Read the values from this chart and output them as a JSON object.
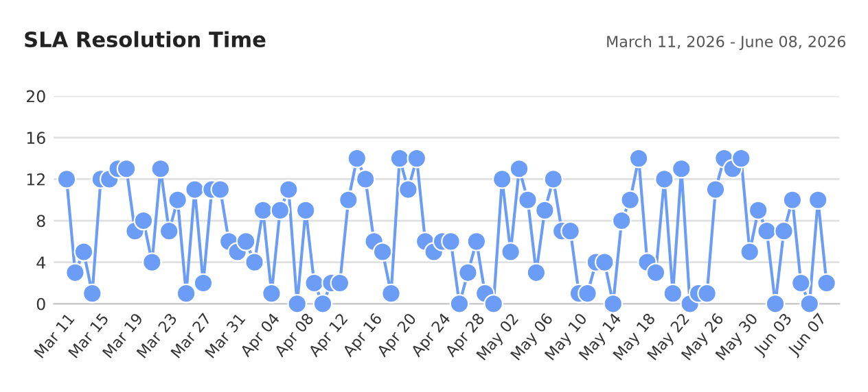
{
  "chart_data": {
    "type": "line",
    "title": "SLA Resolution Time",
    "subtitle": "March 11, 2026 - June 08, 2026",
    "x": [
      "2026-03-11",
      "2026-03-12",
      "2026-03-13",
      "2026-03-14",
      "2026-03-15",
      "2026-03-16",
      "2026-03-17",
      "2026-03-18",
      "2026-03-19",
      "2026-03-20",
      "2026-03-21",
      "2026-03-22",
      "2026-03-23",
      "2026-03-24",
      "2026-03-25",
      "2026-03-26",
      "2026-03-27",
      "2026-03-28",
      "2026-03-29",
      "2026-03-30",
      "2026-03-31",
      "2026-04-01",
      "2026-04-02",
      "2026-04-03",
      "2026-04-04",
      "2026-04-05",
      "2026-04-06",
      "2026-04-07",
      "2026-04-08",
      "2026-04-09",
      "2026-04-10",
      "2026-04-11",
      "2026-04-12",
      "2026-04-13",
      "2026-04-14",
      "2026-04-15",
      "2026-04-16",
      "2026-04-17",
      "2026-04-18",
      "2026-04-19",
      "2026-04-20",
      "2026-04-21",
      "2026-04-22",
      "2026-04-23",
      "2026-04-24",
      "2026-04-25",
      "2026-04-26",
      "2026-04-27",
      "2026-04-28",
      "2026-04-29",
      "2026-04-30",
      "2026-05-01",
      "2026-05-02",
      "2026-05-03",
      "2026-05-04",
      "2026-05-05",
      "2026-05-06",
      "2026-05-07",
      "2026-05-08",
      "2026-05-09",
      "2026-05-10",
      "2026-05-11",
      "2026-05-12",
      "2026-05-13",
      "2026-05-14",
      "2026-05-15",
      "2026-05-16",
      "2026-05-17",
      "2026-05-18",
      "2026-05-19",
      "2026-05-20",
      "2026-05-21",
      "2026-05-22",
      "2026-05-23",
      "2026-05-24",
      "2026-05-25",
      "2026-05-26",
      "2026-05-27",
      "2026-05-28",
      "2026-05-29",
      "2026-05-30",
      "2026-05-31",
      "2026-06-01",
      "2026-06-02",
      "2026-06-03",
      "2026-06-04",
      "2026-06-05",
      "2026-06-06",
      "2026-06-07",
      "2026-06-08"
    ],
    "series": [
      {
        "color": "#6b9cf6",
        "values": [
          12,
          3,
          5,
          1,
          12,
          12,
          13,
          13,
          7,
          8,
          4,
          13,
          7,
          10,
          1,
          11,
          2,
          11,
          11,
          6,
          5,
          6,
          4,
          9,
          1,
          9,
          11,
          0,
          9,
          2,
          0,
          2,
          2,
          10,
          14,
          12,
          6,
          5,
          1,
          14,
          11,
          14,
          6,
          5,
          6,
          6,
          0,
          3,
          6,
          1,
          0,
          12,
          5,
          13,
          10,
          3,
          9,
          12,
          7,
          7,
          1,
          1,
          4,
          4,
          0,
          8,
          10,
          14,
          4,
          3,
          12,
          1,
          13,
          0,
          1,
          1,
          11,
          14,
          13,
          14,
          5,
          9,
          7,
          0,
          7,
          10,
          2,
          0,
          10,
          2
        ]
      }
    ],
    "xlim": [
      "2026-03-09T12:00",
      "2026-06-09T12:00"
    ],
    "xticks": [
      {
        "value": "2026-03-11",
        "label": "Mar 11"
      },
      {
        "value": "2026-03-15",
        "label": "Mar 15"
      },
      {
        "value": "2026-03-19",
        "label": "Mar 19"
      },
      {
        "value": "2026-03-23",
        "label": "Mar 23"
      },
      {
        "value": "2026-03-27",
        "label": "Mar 27"
      },
      {
        "value": "2026-03-31",
        "label": "Mar 31"
      },
      {
        "value": "2026-04-04",
        "label": "Apr 04"
      },
      {
        "value": "2026-04-08",
        "label": "Apr 08"
      },
      {
        "value": "2026-04-12",
        "label": "Apr 12"
      },
      {
        "value": "2026-04-16",
        "label": "Apr 16"
      },
      {
        "value": "2026-04-20",
        "label": "Apr 20"
      },
      {
        "value": "2026-04-24",
        "label": "Apr 24"
      },
      {
        "value": "2026-04-28",
        "label": "Apr 28"
      },
      {
        "value": "2026-05-02",
        "label": "May 02"
      },
      {
        "value": "2026-05-06",
        "label": "May 06"
      },
      {
        "value": "2026-05-10",
        "label": "May 10"
      },
      {
        "value": "2026-05-14",
        "label": "May 14"
      },
      {
        "value": "2026-05-18",
        "label": "May 18"
      },
      {
        "value": "2026-05-22",
        "label": "May 22"
      },
      {
        "value": "2026-05-26",
        "label": "May 26"
      },
      {
        "value": "2026-05-30",
        "label": "May 30"
      },
      {
        "value": "2026-06-03",
        "label": "Jun 03"
      },
      {
        "value": "2026-06-07",
        "label": "Jun 07"
      }
    ],
    "ylim": [
      0,
      20
    ],
    "yticks": [
      0,
      4,
      8,
      12,
      16,
      20
    ],
    "grid": "y",
    "marker": "circle",
    "line_style": "solid"
  }
}
